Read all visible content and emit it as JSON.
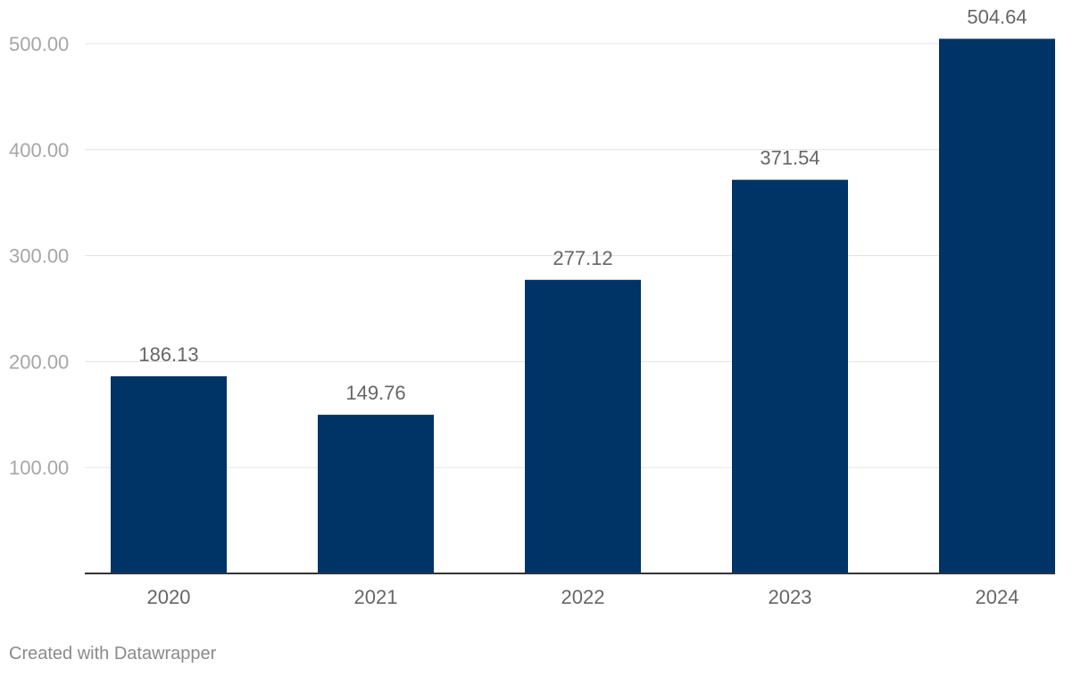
{
  "chart_data": {
    "type": "bar",
    "categories": [
      "2020",
      "2021",
      "2022",
      "2023",
      "2024"
    ],
    "values": [
      186.13,
      149.76,
      277.12,
      371.54,
      504.64
    ],
    "value_labels": [
      "186.13",
      "149.76",
      "277.12",
      "371.54",
      "504.64"
    ],
    "y_ticks": [
      100,
      200,
      300,
      400,
      500
    ],
    "y_tick_labels": [
      "100.00",
      "200.00",
      "300.00",
      "400.00",
      "500.00"
    ],
    "ylim": [
      0,
      500
    ],
    "grid": true,
    "bar_color": "#003366"
  },
  "footer": {
    "credit": "Created with Datawrapper"
  }
}
